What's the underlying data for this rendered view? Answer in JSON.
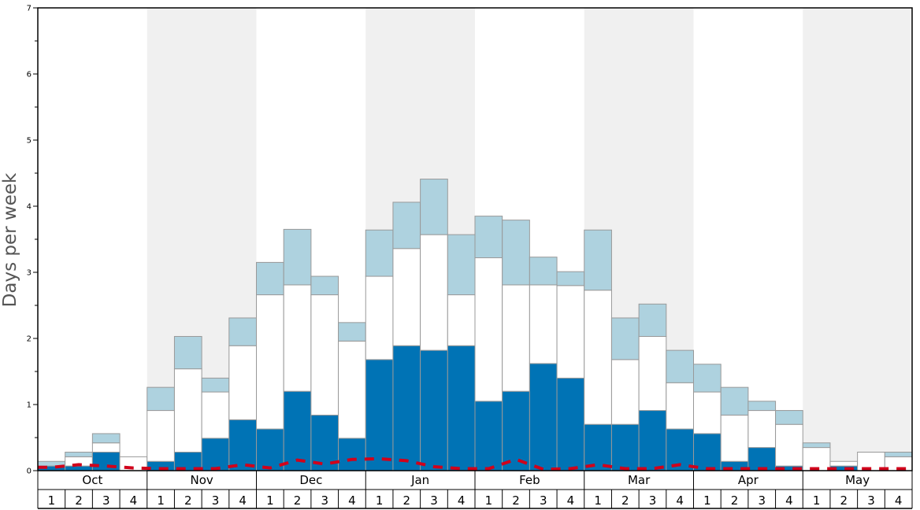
{
  "chart_data": {
    "type": "bar",
    "xlabel": "",
    "ylabel": "Days per week",
    "ylim": [
      0,
      7
    ],
    "yticks": [
      "0",
      "1",
      "2",
      "3",
      "4",
      "5",
      "6",
      "7"
    ],
    "months": [
      "Oct",
      "Nov",
      "Dec",
      "Jan",
      "Feb",
      "Mar",
      "Apr",
      "May"
    ],
    "weeks": [
      "1",
      "2",
      "3",
      "4"
    ],
    "stacked": true,
    "alternating_month_shading": true,
    "series": [
      {
        "color": "#0073b5",
        "values": [
          0.07,
          0.07,
          0.28,
          0.0,
          0.14,
          0.28,
          0.49,
          0.77,
          0.63,
          1.2,
          0.84,
          0.49,
          1.68,
          1.89,
          1.82,
          1.89,
          1.05,
          1.2,
          1.62,
          1.4,
          0.7,
          0.7,
          0.91,
          0.63,
          0.56,
          0.14,
          0.35,
          0.07,
          0.0,
          0.07,
          0.0,
          0.0
        ]
      },
      {
        "color": "#ffffff",
        "values": [
          0.0,
          0.14,
          0.14,
          0.21,
          0.77,
          1.26,
          0.7,
          1.12,
          2.03,
          1.61,
          1.82,
          1.47,
          1.26,
          1.47,
          1.75,
          0.77,
          2.17,
          1.61,
          1.19,
          1.4,
          2.03,
          0.98,
          1.12,
          0.7,
          0.63,
          0.7,
          0.56,
          0.63,
          0.35,
          0.07,
          0.28,
          0.21
        ]
      },
      {
        "color": "#aed2df",
        "values": [
          0.07,
          0.07,
          0.14,
          0.0,
          0.35,
          0.49,
          0.21,
          0.42,
          0.49,
          0.84,
          0.28,
          0.28,
          0.7,
          0.7,
          0.84,
          0.91,
          0.63,
          0.98,
          0.42,
          0.21,
          0.91,
          0.63,
          0.49,
          0.49,
          0.42,
          0.42,
          0.14,
          0.21,
          0.07,
          0.0,
          0.0,
          0.07
        ]
      }
    ],
    "trend_line": {
      "color": "#d0021b",
      "style": "dashed",
      "values": [
        0.05,
        0.09,
        0.07,
        0.04,
        0.03,
        0.03,
        0.03,
        0.09,
        0.04,
        0.16,
        0.1,
        0.17,
        0.18,
        0.15,
        0.06,
        0.03,
        0.03,
        0.17,
        0.02,
        0.03,
        0.09,
        0.03,
        0.03,
        0.09,
        0.03,
        0.03,
        0.03,
        0.03,
        0.03,
        0.03,
        0.03,
        0.03
      ]
    }
  }
}
